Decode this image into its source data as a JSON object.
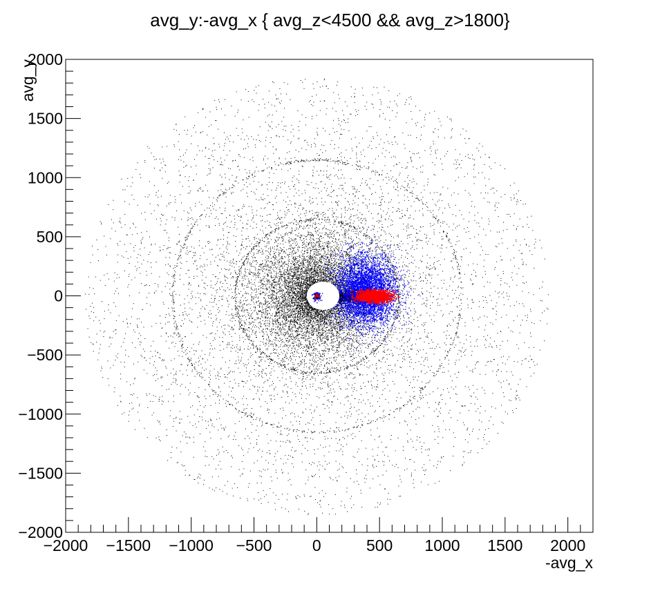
{
  "chart_data": {
    "type": "scatter",
    "title": "avg_y:-avg_x { avg_z<4500 && avg_z>1800}",
    "xlabel": "-avg_x",
    "ylabel": "avg_y",
    "xlim": [
      -2000,
      2200
    ],
    "ylim": [
      -2000,
      2000
    ],
    "x_ticks": [
      -2000,
      -1500,
      -1000,
      -500,
      0,
      500,
      1000,
      1500,
      2000
    ],
    "y_ticks": [
      -2000,
      -1500,
      -1000,
      -500,
      0,
      500,
      1000,
      1500,
      2000
    ],
    "x_tick_labels": [
      "−2000",
      "−1500",
      "−1000",
      "−500",
      "0",
      "500",
      "1000",
      "1500",
      "2000"
    ],
    "y_tick_labels": [
      "−2000",
      "−1500",
      "−1000",
      "−500",
      "0",
      "500",
      "1000",
      "1500",
      "2000"
    ],
    "grid": false,
    "series": [
      {
        "color": "#000000",
        "description_shape": "radial halo around origin, r up to ~1850, dense core within ~600, rings near r=650 and r=1150, empty disk r<~70",
        "rings": [
          650,
          1150
        ],
        "r_inner": 70,
        "r_outer": 1850
      },
      {
        "color": "#0000ff",
        "description_shape": "lobe on positive -avg_x side",
        "center": [
          380,
          40
        ],
        "spread": [
          220,
          260
        ]
      },
      {
        "color": "#ff0000",
        "description_shape": "elongated blob",
        "center": [
          450,
          0
        ],
        "spread": [
          110,
          40
        ]
      }
    ]
  }
}
